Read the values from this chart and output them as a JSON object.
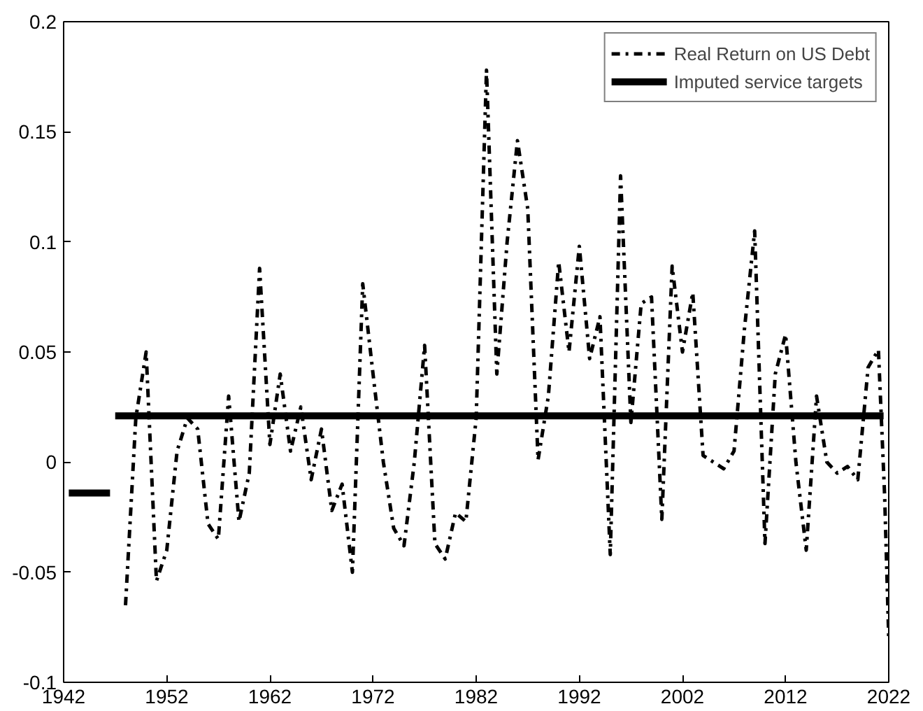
{
  "chart_data": {
    "type": "line",
    "xlim": [
      1942,
      2022
    ],
    "xticks": [
      1942,
      1952,
      1962,
      1972,
      1982,
      1992,
      2002,
      2012,
      2022
    ],
    "ylim": [
      -0.1,
      0.2
    ],
    "yticks": [
      -0.1,
      -0.05,
      0,
      0.05,
      0.1,
      0.15,
      0.2
    ],
    "grid": false,
    "legend": "top right",
    "marker": "none",
    "series": [
      {
        "name": "Real Return on US Debt",
        "color": "#000000",
        "line_style": "dashdot",
        "x": [
          1948,
          1949,
          1950,
          1951,
          1952,
          1953,
          1954,
          1955,
          1956,
          1957,
          1958,
          1959,
          1960,
          1961,
          1962,
          1963,
          1964,
          1965,
          1966,
          1967,
          1968,
          1969,
          1970,
          1971,
          1972,
          1973,
          1974,
          1975,
          1976,
          1977,
          1978,
          1979,
          1980,
          1981,
          1982,
          1983,
          1984,
          1985,
          1986,
          1987,
          1988,
          1989,
          1990,
          1991,
          1992,
          1993,
          1994,
          1995,
          1996,
          1997,
          1998,
          1999,
          2000,
          2001,
          2002,
          2003,
          2004,
          2005,
          2006,
          2007,
          2008,
          2009,
          2010,
          2011,
          2012,
          2013,
          2014,
          2015,
          2016,
          2017,
          2018,
          2019,
          2020,
          2021,
          2021.6,
          2022
        ],
        "values": [
          -0.065,
          0.02,
          0.05,
          -0.054,
          -0.04,
          0.005,
          0.02,
          0.015,
          -0.028,
          -0.035,
          0.03,
          -0.027,
          -0.005,
          0.088,
          0.008,
          0.04,
          0.005,
          0.025,
          -0.008,
          0.015,
          -0.022,
          -0.01,
          -0.05,
          0.081,
          0.04,
          0.0,
          -0.03,
          -0.038,
          0.0,
          0.053,
          -0.037,
          -0.044,
          -0.023,
          -0.027,
          0.02,
          0.178,
          0.04,
          0.1,
          0.146,
          0.115,
          0.001,
          0.03,
          0.091,
          0.05,
          0.098,
          0.047,
          0.066,
          -0.042,
          0.13,
          0.018,
          0.072,
          0.075,
          -0.026,
          0.089,
          0.05,
          0.077,
          0.003,
          0.0,
          -0.003,
          0.005,
          0.06,
          0.105,
          -0.037,
          0.04,
          0.058,
          0.0,
          -0.04,
          0.03,
          0.0,
          -0.005,
          -0.002,
          -0.008,
          0.043,
          0.051,
          -0.015,
          -0.08
        ]
      },
      {
        "name": "Imputed service targets",
        "color": "#000000",
        "line_style": "solid",
        "x": [
          1942.5,
          1946.5,
          1946.8,
          1947,
          2021.5
        ],
        "values": [
          -0.014,
          -0.014,
          null,
          0.021,
          0.021
        ]
      }
    ]
  }
}
